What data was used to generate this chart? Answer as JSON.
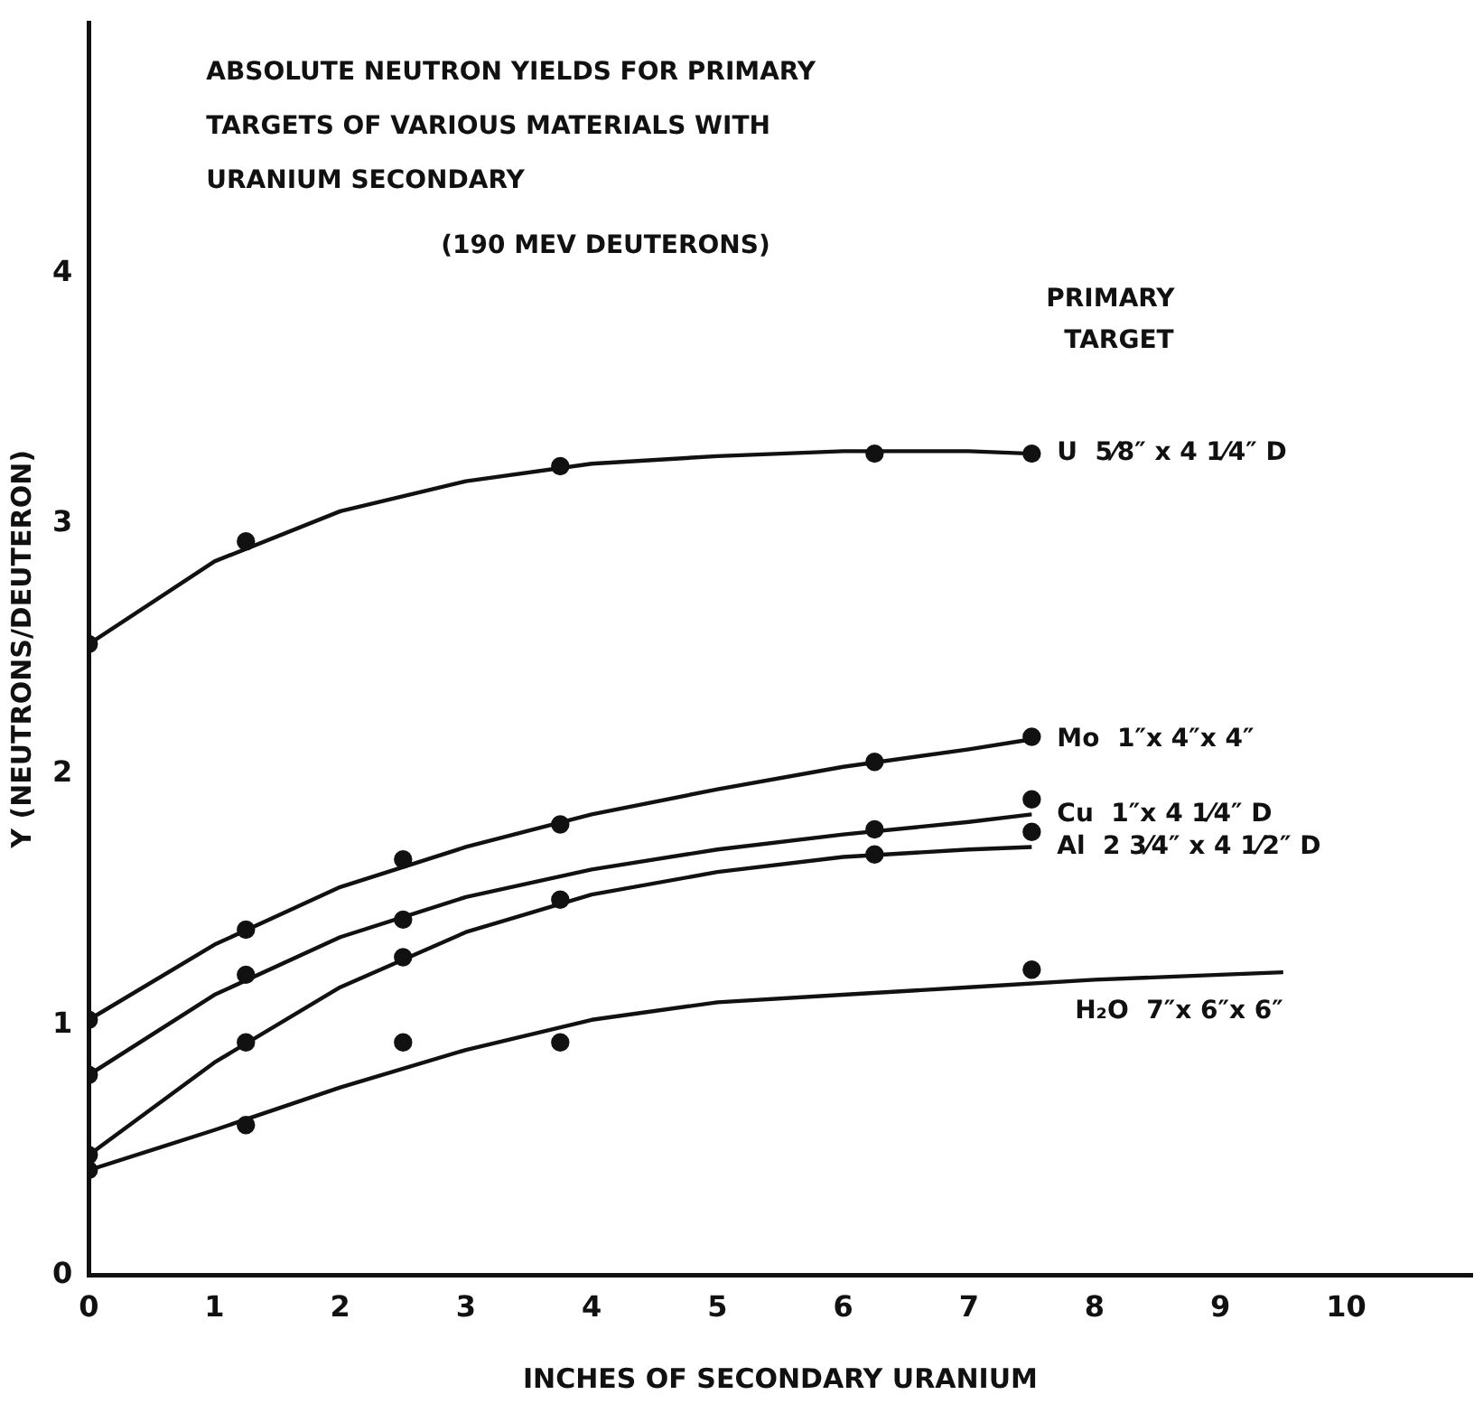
{
  "chart_data": {
    "type": "scatter",
    "title": "ABSOLUTE NEUTRON YIELDS FOR PRIMARY TARGETS OF VARIOUS MATERIALS WITH URANIUM SECONDARY",
    "subtitle": "(190 MEV DEUTERONS)",
    "legend_title": "PRIMARY TARGET",
    "xlabel": "INCHES OF SECONDARY URANIUM",
    "ylabel": "Y (NEUTRONS/DEUTERON)",
    "xlim": [
      0,
      11
    ],
    "xticks": [
      0,
      1,
      2,
      3,
      4,
      5,
      6,
      7,
      8,
      9,
      10
    ],
    "ylim": [
      0,
      5
    ],
    "yticks": [
      0,
      1,
      2,
      3,
      4
    ],
    "grid": false,
    "legend": false,
    "series": [
      {
        "marker": "circle",
        "color": "#111111",
        "x": [
          0,
          1.25,
          3.75,
          6.25,
          7.5
        ],
        "values": [
          2.52,
          2.93,
          3.23,
          3.28,
          3.28
        ]
      },
      {
        "marker": "circle",
        "color": "#111111",
        "x": [
          0,
          1.25,
          2.5,
          3.75,
          6.25,
          7.5
        ],
        "values": [
          1.02,
          1.38,
          1.66,
          1.8,
          2.05,
          2.15
        ]
      },
      {
        "marker": "circle",
        "color": "#111111",
        "x": [
          0,
          1.25,
          2.5,
          6.25,
          7.5
        ],
        "values": [
          0.8,
          1.2,
          1.42,
          1.78,
          1.9
        ]
      },
      {
        "marker": "circle",
        "color": "#111111",
        "x": [
          0,
          1.25,
          2.5,
          3.75,
          6.25,
          7.5
        ],
        "values": [
          0.48,
          0.93,
          1.27,
          1.5,
          1.68,
          1.77
        ]
      },
      {
        "marker": "circle",
        "color": "#111111",
        "x": [
          0,
          1.25,
          2.5,
          3.75,
          7.5
        ],
        "values": [
          0.42,
          0.6,
          0.93,
          0.93,
          1.22
        ]
      },
      {
        "type": "line",
        "marker": "none",
        "name": "U  5⁄8″ x 4 1⁄4″ D",
        "color": "#111111",
        "x": [
          0,
          1,
          2,
          3,
          4,
          5,
          6,
          7,
          7.5
        ],
        "values": [
          2.52,
          2.85,
          3.05,
          3.17,
          3.24,
          3.27,
          3.29,
          3.29,
          3.28
        ]
      },
      {
        "type": "line",
        "marker": "none",
        "name": "Mo  1″x 4″x 4″",
        "color": "#111111",
        "x": [
          0,
          1,
          2,
          3,
          4,
          5,
          6,
          7,
          7.5
        ],
        "values": [
          1.02,
          1.32,
          1.55,
          1.71,
          1.84,
          1.94,
          2.03,
          2.1,
          2.14
        ]
      },
      {
        "type": "line",
        "marker": "none",
        "name": "Cu  1″x 4 1⁄4″ D",
        "color": "#111111",
        "x": [
          0,
          1,
          2,
          3,
          4,
          5,
          6,
          7,
          7.5
        ],
        "values": [
          0.8,
          1.12,
          1.35,
          1.51,
          1.62,
          1.7,
          1.76,
          1.81,
          1.84
        ]
      },
      {
        "type": "line",
        "marker": "none",
        "name": "Al  2 3⁄4″ x 4 1⁄2″ D",
        "color": "#111111",
        "x": [
          0,
          1,
          2,
          3,
          4,
          5,
          6,
          7,
          7.5
        ],
        "values": [
          0.48,
          0.85,
          1.15,
          1.37,
          1.52,
          1.61,
          1.67,
          1.7,
          1.71
        ]
      },
      {
        "type": "line",
        "marker": "none",
        "name": "H₂O  7″x 6″x 6″",
        "color": "#111111",
        "x": [
          0,
          1,
          2,
          3,
          4,
          5,
          6,
          7,
          8,
          9,
          9.5
        ],
        "values": [
          0.42,
          0.58,
          0.75,
          0.9,
          1.02,
          1.09,
          1.12,
          1.15,
          1.18,
          1.2,
          1.21
        ]
      }
    ]
  }
}
